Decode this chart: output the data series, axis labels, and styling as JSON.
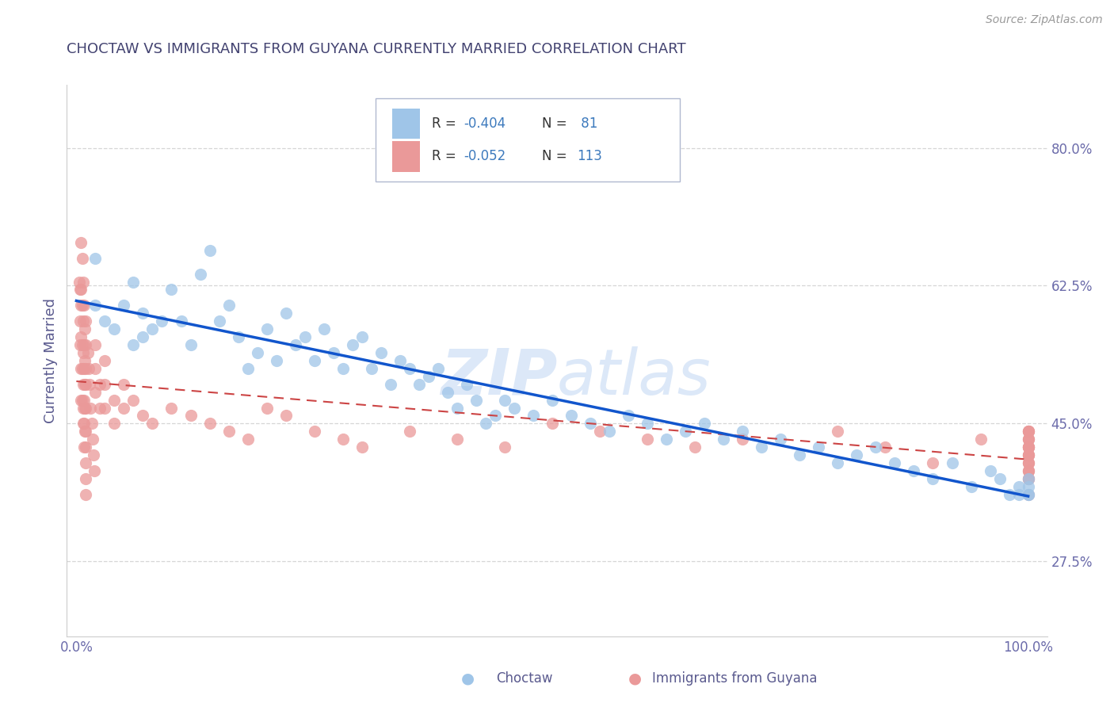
{
  "title": "CHOCTAW VS IMMIGRANTS FROM GUYANA CURRENTLY MARRIED CORRELATION CHART",
  "source_text": "Source: ZipAtlas.com",
  "ylabel": "Currently Married",
  "y_ticks": [
    0.275,
    0.45,
    0.625,
    0.8
  ],
  "y_tick_labels": [
    "27.5%",
    "45.0%",
    "62.5%",
    "80.0%"
  ],
  "xlim": [
    -0.01,
    1.02
  ],
  "ylim": [
    0.18,
    0.88
  ],
  "choctaw_R": -0.404,
  "choctaw_N": 81,
  "guyana_R": -0.052,
  "guyana_N": 113,
  "legend_label_1": "Choctaw",
  "legend_label_2": "Immigrants from Guyana",
  "color_blue": "#9fc5e8",
  "color_pink": "#ea9999",
  "color_blue_line": "#1155cc",
  "color_pink_line": "#cc4444",
  "title_color": "#434371",
  "axis_label_color": "#5b5b8f",
  "tick_color": "#6b6baa",
  "source_color": "#999999",
  "watermark_color": "#dce8f8",
  "background_color": "#ffffff",
  "grid_color": "#cccccc",
  "legend_text_color": "#3d7abd",
  "legend_N_color": "#3d7abd",
  "choctaw_x": [
    0.02,
    0.02,
    0.03,
    0.04,
    0.05,
    0.06,
    0.06,
    0.07,
    0.07,
    0.08,
    0.09,
    0.1,
    0.11,
    0.12,
    0.13,
    0.14,
    0.15,
    0.16,
    0.17,
    0.18,
    0.19,
    0.2,
    0.21,
    0.22,
    0.23,
    0.24,
    0.25,
    0.26,
    0.27,
    0.28,
    0.29,
    0.3,
    0.31,
    0.32,
    0.33,
    0.34,
    0.35,
    0.36,
    0.37,
    0.38,
    0.39,
    0.4,
    0.41,
    0.42,
    0.43,
    0.44,
    0.45,
    0.46,
    0.48,
    0.5,
    0.52,
    0.54,
    0.56,
    0.58,
    0.6,
    0.62,
    0.64,
    0.66,
    0.68,
    0.7,
    0.72,
    0.74,
    0.76,
    0.78,
    0.8,
    0.82,
    0.84,
    0.86,
    0.88,
    0.9,
    0.92,
    0.94,
    0.96,
    0.97,
    0.98,
    0.99,
    0.99,
    1.0,
    1.0,
    1.0,
    1.0
  ],
  "choctaw_y": [
    0.66,
    0.6,
    0.58,
    0.57,
    0.6,
    0.55,
    0.63,
    0.56,
    0.59,
    0.57,
    0.58,
    0.62,
    0.58,
    0.55,
    0.64,
    0.67,
    0.58,
    0.6,
    0.56,
    0.52,
    0.54,
    0.57,
    0.53,
    0.59,
    0.55,
    0.56,
    0.53,
    0.57,
    0.54,
    0.52,
    0.55,
    0.56,
    0.52,
    0.54,
    0.5,
    0.53,
    0.52,
    0.5,
    0.51,
    0.52,
    0.49,
    0.47,
    0.5,
    0.48,
    0.45,
    0.46,
    0.48,
    0.47,
    0.46,
    0.48,
    0.46,
    0.45,
    0.44,
    0.46,
    0.45,
    0.43,
    0.44,
    0.45,
    0.43,
    0.44,
    0.42,
    0.43,
    0.41,
    0.42,
    0.4,
    0.41,
    0.42,
    0.4,
    0.39,
    0.38,
    0.4,
    0.37,
    0.39,
    0.38,
    0.36,
    0.37,
    0.36,
    0.37,
    0.36,
    0.38,
    0.36
  ],
  "guyana_x": [
    0.003,
    0.004,
    0.004,
    0.004,
    0.005,
    0.005,
    0.005,
    0.005,
    0.005,
    0.005,
    0.006,
    0.006,
    0.006,
    0.006,
    0.006,
    0.007,
    0.007,
    0.007,
    0.007,
    0.007,
    0.007,
    0.008,
    0.008,
    0.008,
    0.008,
    0.008,
    0.008,
    0.009,
    0.009,
    0.009,
    0.009,
    0.009,
    0.01,
    0.01,
    0.01,
    0.01,
    0.01,
    0.01,
    0.01,
    0.01,
    0.01,
    0.01,
    0.012,
    0.013,
    0.014,
    0.015,
    0.016,
    0.017,
    0.018,
    0.019,
    0.02,
    0.02,
    0.02,
    0.025,
    0.025,
    0.03,
    0.03,
    0.03,
    0.04,
    0.04,
    0.05,
    0.05,
    0.06,
    0.07,
    0.08,
    0.1,
    0.12,
    0.14,
    0.16,
    0.18,
    0.2,
    0.22,
    0.25,
    0.28,
    0.3,
    0.35,
    0.4,
    0.45,
    0.5,
    0.55,
    0.6,
    0.65,
    0.7,
    0.8,
    0.85,
    0.9,
    0.95,
    1.0,
    1.0,
    1.0,
    1.0,
    1.0,
    1.0,
    1.0,
    1.0,
    1.0,
    1.0,
    1.0,
    1.0,
    1.0,
    1.0,
    1.0,
    1.0,
    1.0,
    1.0,
    1.0,
    1.0,
    1.0,
    1.0,
    1.0,
    1.0,
    1.0,
    1.0
  ],
  "guyana_y": [
    0.63,
    0.55,
    0.58,
    0.62,
    0.68,
    0.62,
    0.56,
    0.52,
    0.6,
    0.48,
    0.66,
    0.6,
    0.55,
    0.52,
    0.48,
    0.63,
    0.58,
    0.54,
    0.5,
    0.47,
    0.45,
    0.6,
    0.55,
    0.52,
    0.48,
    0.45,
    0.42,
    0.57,
    0.53,
    0.5,
    0.47,
    0.44,
    0.58,
    0.55,
    0.52,
    0.5,
    0.47,
    0.44,
    0.42,
    0.4,
    0.38,
    0.36,
    0.54,
    0.52,
    0.5,
    0.47,
    0.45,
    0.43,
    0.41,
    0.39,
    0.55,
    0.52,
    0.49,
    0.5,
    0.47,
    0.53,
    0.5,
    0.47,
    0.48,
    0.45,
    0.5,
    0.47,
    0.48,
    0.46,
    0.45,
    0.47,
    0.46,
    0.45,
    0.44,
    0.43,
    0.47,
    0.46,
    0.44,
    0.43,
    0.42,
    0.44,
    0.43,
    0.42,
    0.45,
    0.44,
    0.43,
    0.42,
    0.43,
    0.44,
    0.42,
    0.4,
    0.43,
    0.44,
    0.42,
    0.4,
    0.38,
    0.42,
    0.39,
    0.43,
    0.41,
    0.44,
    0.42,
    0.4,
    0.43,
    0.38,
    0.41,
    0.44,
    0.42,
    0.39,
    0.43,
    0.41,
    0.4,
    0.38,
    0.42,
    0.44,
    0.39,
    0.41,
    0.36
  ]
}
